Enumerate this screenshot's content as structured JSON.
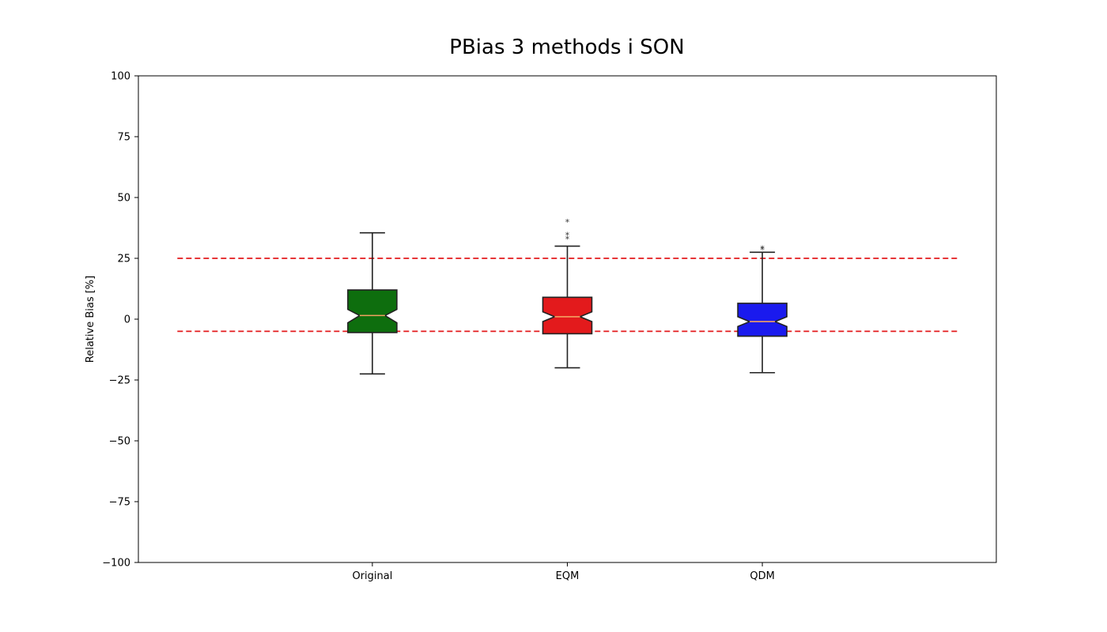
{
  "chart_data": {
    "type": "boxplot",
    "title": "PBias 3 methods i SON",
    "xlabel": "",
    "ylabel": "Relative Bias [%]",
    "ylim": [
      -100,
      100
    ],
    "yticks": [
      100,
      75,
      50,
      25,
      0,
      -25,
      -50,
      -75,
      -100
    ],
    "ytick_labels": [
      "100",
      "75",
      "50",
      "25",
      "0",
      "−25",
      "−50",
      "−75",
      "−100"
    ],
    "grid": false,
    "notched": true,
    "categories": [
      "Original",
      "EQM",
      "QDM"
    ],
    "boxes": [
      {
        "name": "Original",
        "color": "#0e6e0e",
        "whisker_low": -22.5,
        "q1": -5.5,
        "median": 1.5,
        "q3": 12.0,
        "whisker_high": 35.5,
        "notch_low": -1.5,
        "notch_high": 4.0,
        "outliers": []
      },
      {
        "name": "EQM",
        "color": "#e31a1c",
        "whisker_low": -20.0,
        "q1": -6.0,
        "median": 1.0,
        "q3": 9.0,
        "whisker_high": 30.0,
        "notch_low": -1.0,
        "notch_high": 3.0,
        "outliers": [
          33.0,
          34.5,
          40.0
        ]
      },
      {
        "name": "QDM",
        "color": "#1a1aee",
        "whisker_low": -22.0,
        "q1": -7.0,
        "median": -1.0,
        "q3": 6.5,
        "whisker_high": 27.5,
        "notch_low": -3.0,
        "notch_high": 1.0,
        "outliers": [
          28.5,
          29.0
        ]
      }
    ],
    "reference_lines": [
      {
        "y": 25,
        "color": "#e31a1c",
        "style": "dashed"
      },
      {
        "y": -5,
        "color": "#e31a1c",
        "style": "dashed"
      }
    ],
    "colors": {
      "median": "#f4a261",
      "edge": "#222222",
      "axes": "#000000"
    }
  }
}
